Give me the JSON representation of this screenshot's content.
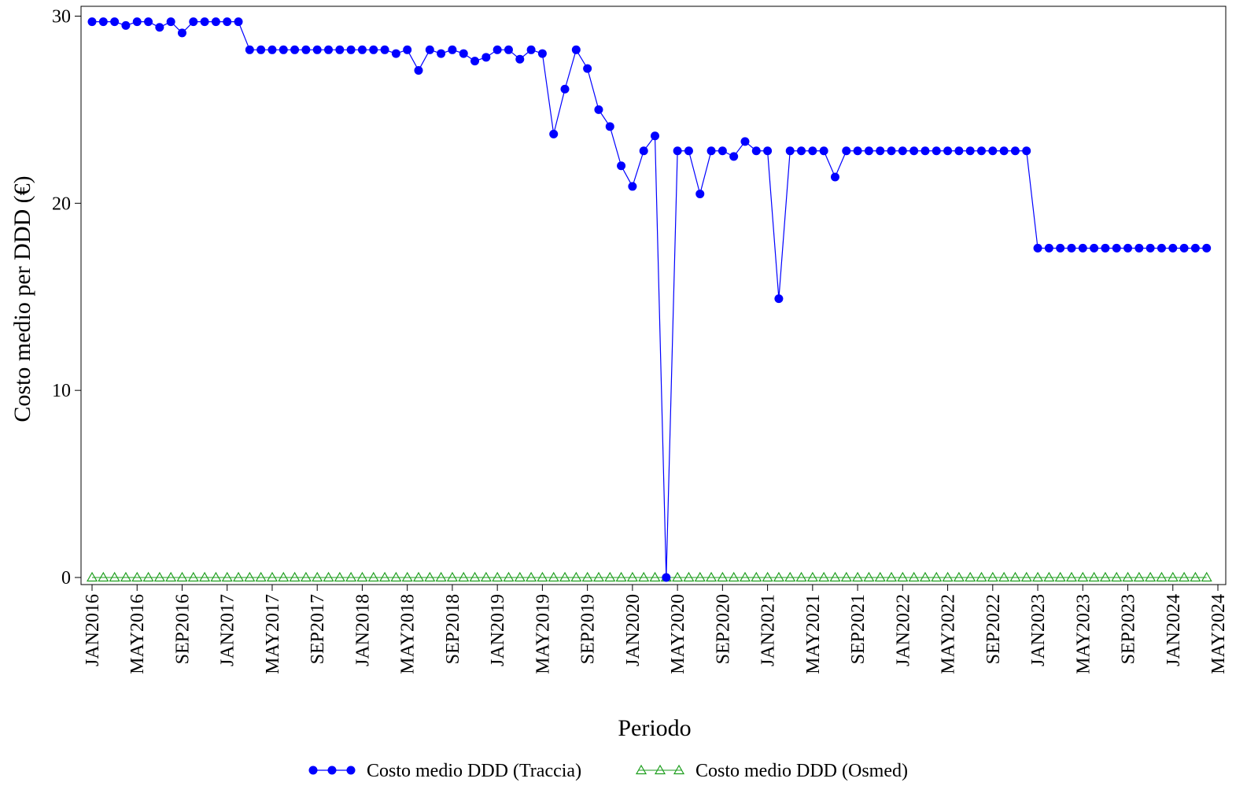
{
  "chart_data": {
    "type": "line",
    "title": "",
    "xlabel": "Periodo",
    "ylabel": "Costo medio per DDD (€)",
    "ylim": [
      0,
      30
    ],
    "yticks": [
      0,
      10,
      20,
      30
    ],
    "x_start": "JAN2016",
    "x_end": "MAY2024",
    "xtick_labels": [
      "JAN2016",
      "MAY2016",
      "SEP2016",
      "JAN2017",
      "MAY2017",
      "SEP2017",
      "JAN2018",
      "MAY2018",
      "SEP2018",
      "JAN2019",
      "MAY2019",
      "SEP2019",
      "JAN2020",
      "MAY2020",
      "SEP2020",
      "JAN2021",
      "MAY2021",
      "SEP2021",
      "JAN2022",
      "MAY2022",
      "SEP2022",
      "JAN2023",
      "MAY2023",
      "SEP2023",
      "JAN2024",
      "MAY2024"
    ],
    "legend_position": "bottom",
    "colors": {
      "traccia": "#0000ff",
      "osmed": "#1e9e1e"
    },
    "series": [
      {
        "name": "Costo medio DDD (Traccia)",
        "marker": "filled-circle",
        "values": [
          29.7,
          29.7,
          29.7,
          29.5,
          29.7,
          29.7,
          29.4,
          29.7,
          29.1,
          29.7,
          29.7,
          29.7,
          29.7,
          29.7,
          28.2,
          28.2,
          28.2,
          28.2,
          28.2,
          28.2,
          28.2,
          28.2,
          28.2,
          28.2,
          28.2,
          28.2,
          28.2,
          28.0,
          28.2,
          27.1,
          28.2,
          28.0,
          28.2,
          28.0,
          27.6,
          27.8,
          28.2,
          28.2,
          27.7,
          28.2,
          28.0,
          23.7,
          26.1,
          28.2,
          27.2,
          25.0,
          24.1,
          22.0,
          20.9,
          22.8,
          23.6,
          0.0,
          22.8,
          22.8,
          20.5,
          22.8,
          22.8,
          22.5,
          23.3,
          22.8,
          22.8,
          14.9,
          22.8,
          22.8,
          22.8,
          22.8,
          21.4,
          22.8,
          22.8,
          22.8,
          22.8,
          22.8,
          22.8,
          22.8,
          22.8,
          22.8,
          22.8,
          22.8,
          22.8,
          22.8,
          22.8,
          22.8,
          22.8,
          22.8,
          17.6,
          17.6,
          17.6,
          17.6,
          17.6,
          17.6,
          17.6,
          17.6,
          17.6,
          17.6,
          17.6,
          17.6,
          17.6,
          17.6,
          17.6,
          17.6
        ]
      },
      {
        "name": "Costo medio DDD (Osmed)",
        "marker": "open-triangle",
        "values": [
          0,
          0,
          0,
          0,
          0,
          0,
          0,
          0,
          0,
          0,
          0,
          0,
          0,
          0,
          0,
          0,
          0,
          0,
          0,
          0,
          0,
          0,
          0,
          0,
          0,
          0,
          0,
          0,
          0,
          0,
          0,
          0,
          0,
          0,
          0,
          0,
          0,
          0,
          0,
          0,
          0,
          0,
          0,
          0,
          0,
          0,
          0,
          0,
          0,
          0,
          0,
          0,
          0,
          0,
          0,
          0,
          0,
          0,
          0,
          0,
          0,
          0,
          0,
          0,
          0,
          0,
          0,
          0,
          0,
          0,
          0,
          0,
          0,
          0,
          0,
          0,
          0,
          0,
          0,
          0,
          0,
          0,
          0,
          0,
          0,
          0,
          0,
          0,
          0,
          0,
          0,
          0,
          0,
          0,
          0,
          0,
          0,
          0,
          0,
          0
        ]
      }
    ]
  }
}
